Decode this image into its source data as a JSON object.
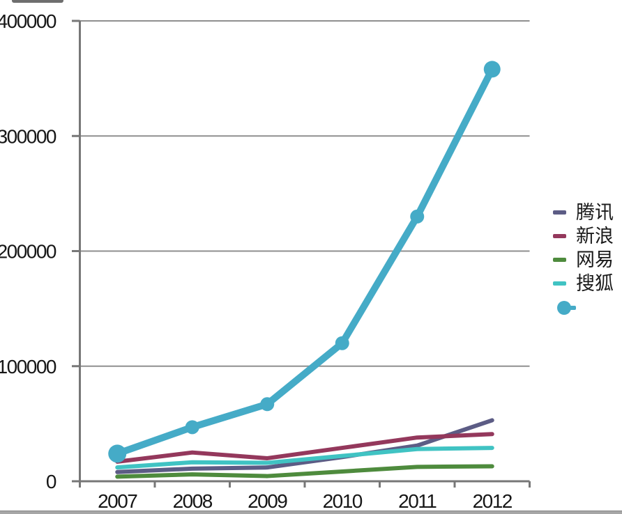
{
  "chart_data": {
    "type": "line",
    "title": "",
    "categories": [
      "2007",
      "2008",
      "2009",
      "2010",
      "2011",
      "2012"
    ],
    "series": [
      {
        "id": "tengxun",
        "name": "腾讯",
        "color": "#5C5C85",
        "width": 6,
        "marker": false,
        "values": [
          8000,
          11000,
          12000,
          21000,
          31000,
          53000
        ]
      },
      {
        "id": "xinlang",
        "name": "新浪",
        "color": "#94385C",
        "width": 6,
        "marker": false,
        "values": [
          17000,
          25000,
          20000,
          29000,
          38000,
          41000
        ]
      },
      {
        "id": "wangyi",
        "name": "网易",
        "color": "#4E8B3D",
        "width": 6,
        "marker": false,
        "values": [
          4000,
          6000,
          4500,
          8500,
          12500,
          13000
        ]
      },
      {
        "id": "souhu",
        "name": "搜狐",
        "color": "#40C3C3",
        "width": 6,
        "marker": false,
        "values": [
          12000,
          16500,
          16000,
          22000,
          28000,
          29000
        ]
      },
      {
        "id": "unnamed",
        "name": "",
        "color": "#45ABC7",
        "width": 10,
        "marker": true,
        "values": [
          24000,
          47000,
          67000,
          120000,
          230000,
          358000
        ]
      }
    ],
    "ylim": [
      0,
      400000
    ],
    "yticks": [
      0,
      100000,
      200000,
      300000,
      400000
    ],
    "xlabel": "",
    "ylabel": "",
    "grid": true,
    "legend_position": "right",
    "colors": {
      "gridline": "#8F8F8F",
      "axis": "#777777",
      "tick_text": "#161616"
    }
  }
}
